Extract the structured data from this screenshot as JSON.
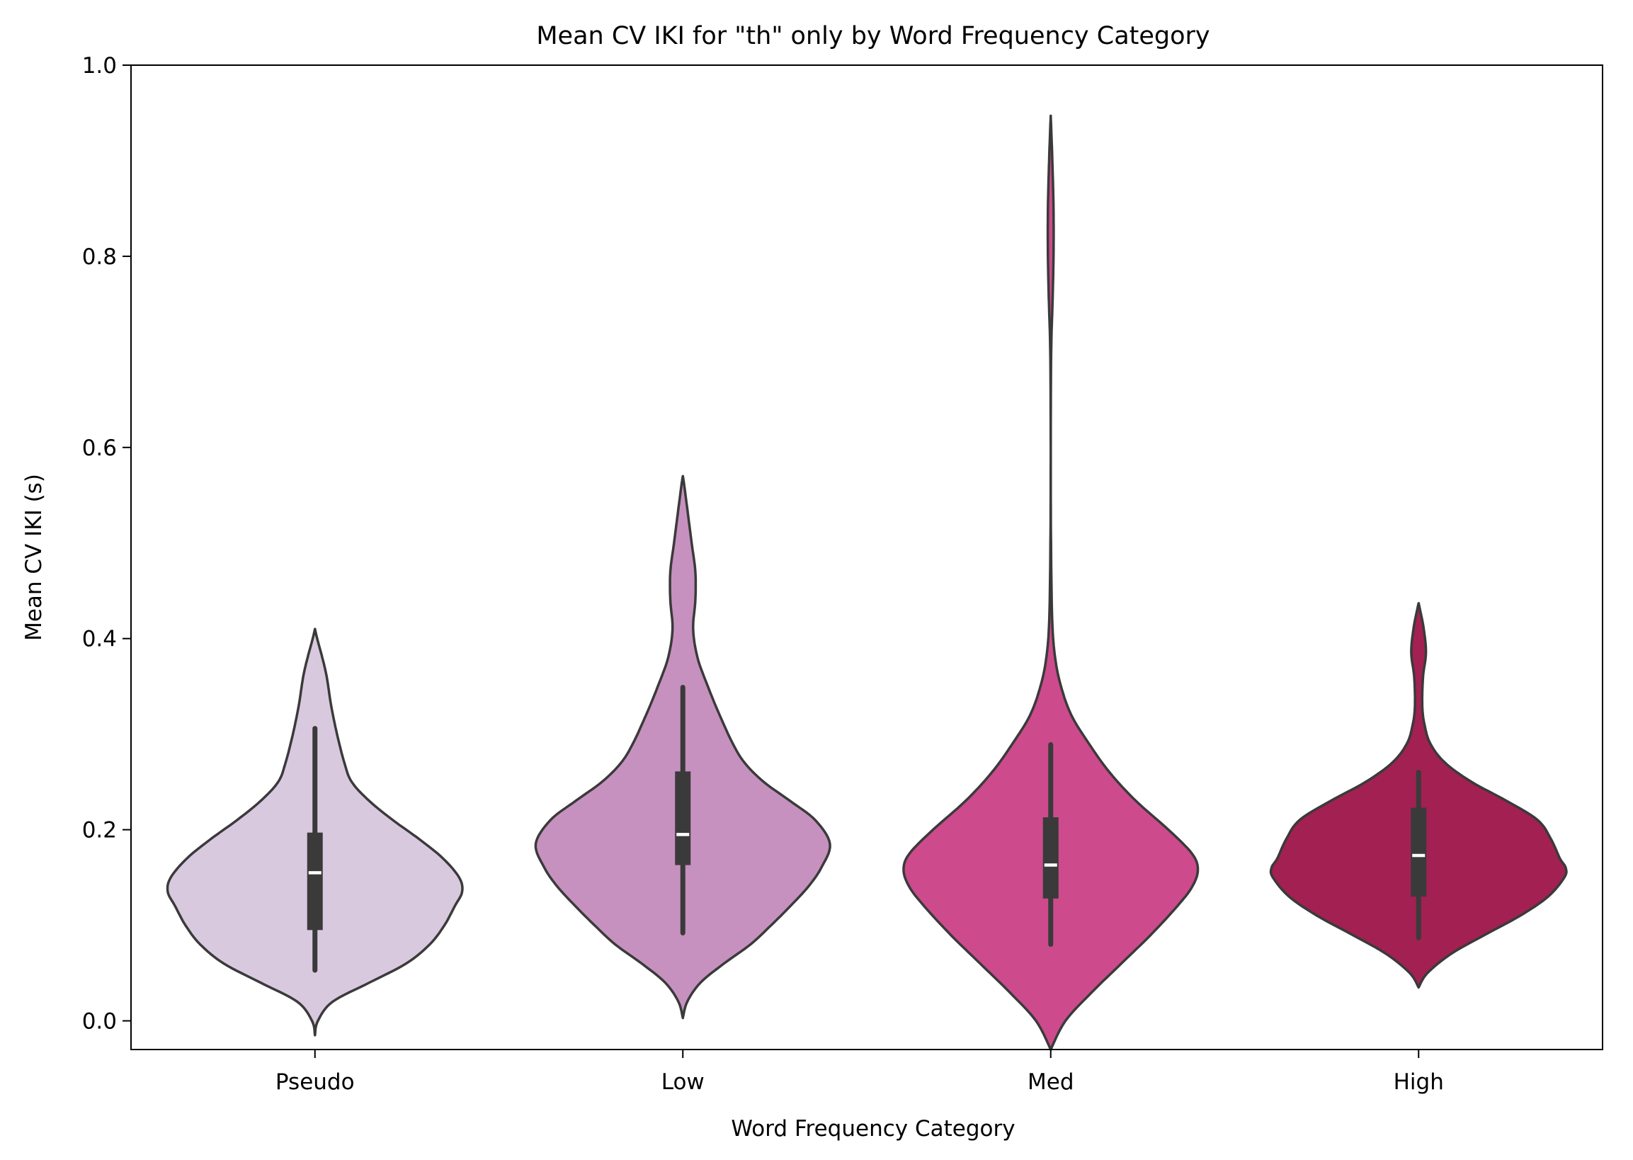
{
  "chart_data": {
    "type": "violin",
    "title": "Mean CV IKI for \"th\" only by Word Frequency Category",
    "xlabel": "Word Frequency Category",
    "ylabel": "Mean CV IKI (s)",
    "ylim": [
      -0.03,
      1.0
    ],
    "yticks": [
      "0.0",
      "0.2",
      "0.4",
      "0.6",
      "0.8",
      "1.0"
    ],
    "grid": false,
    "categories": [
      "Pseudo",
      "Low",
      "Med",
      "High"
    ],
    "series": [
      {
        "category": "Pseudo",
        "color": "#d9c9df",
        "min": 0.053,
        "q1": 0.095,
        "median": 0.155,
        "q3": 0.197,
        "max": 0.306,
        "kde_range": [
          -0.015,
          0.41
        ],
        "density": [
          [
            -0.015,
            0.0
          ],
          [
            0.0,
            0.02
          ],
          [
            0.02,
            0.12
          ],
          [
            0.04,
            0.37
          ],
          [
            0.06,
            0.62
          ],
          [
            0.08,
            0.78
          ],
          [
            0.1,
            0.88
          ],
          [
            0.12,
            0.95
          ],
          [
            0.135,
            1.0
          ],
          [
            0.15,
            0.98
          ],
          [
            0.17,
            0.87
          ],
          [
            0.19,
            0.71
          ],
          [
            0.21,
            0.53
          ],
          [
            0.23,
            0.37
          ],
          [
            0.25,
            0.25
          ],
          [
            0.27,
            0.2
          ],
          [
            0.3,
            0.15
          ],
          [
            0.33,
            0.11
          ],
          [
            0.36,
            0.08
          ],
          [
            0.38,
            0.05
          ],
          [
            0.4,
            0.015
          ],
          [
            0.41,
            0.0
          ]
        ]
      },
      {
        "category": "Low",
        "color": "#c691bf",
        "min": 0.092,
        "q1": 0.163,
        "median": 0.195,
        "q3": 0.261,
        "max": 0.349,
        "kde_range": [
          0.003,
          0.57
        ],
        "density": [
          [
            0.003,
            0.0
          ],
          [
            0.02,
            0.03
          ],
          [
            0.04,
            0.12
          ],
          [
            0.06,
            0.28
          ],
          [
            0.08,
            0.46
          ],
          [
            0.1,
            0.6
          ],
          [
            0.12,
            0.73
          ],
          [
            0.14,
            0.85
          ],
          [
            0.16,
            0.94
          ],
          [
            0.185,
            1.0
          ],
          [
            0.21,
            0.9
          ],
          [
            0.23,
            0.73
          ],
          [
            0.25,
            0.55
          ],
          [
            0.27,
            0.42
          ],
          [
            0.29,
            0.34
          ],
          [
            0.32,
            0.25
          ],
          [
            0.35,
            0.17
          ],
          [
            0.38,
            0.1
          ],
          [
            0.41,
            0.07
          ],
          [
            0.44,
            0.085
          ],
          [
            0.47,
            0.085
          ],
          [
            0.5,
            0.06
          ],
          [
            0.53,
            0.035
          ],
          [
            0.56,
            0.01
          ],
          [
            0.57,
            0.0
          ]
        ]
      },
      {
        "category": "Med",
        "color": "#cd4b8c",
        "min": 0.08,
        "q1": 0.128,
        "median": 0.163,
        "q3": 0.213,
        "max": 0.289,
        "kde_range": [
          -0.03,
          0.947
        ],
        "density": [
          [
            -0.03,
            0.0
          ],
          [
            0.0,
            0.1
          ],
          [
            0.03,
            0.28
          ],
          [
            0.06,
            0.48
          ],
          [
            0.09,
            0.68
          ],
          [
            0.12,
            0.86
          ],
          [
            0.14,
            0.96
          ],
          [
            0.158,
            1.0
          ],
          [
            0.175,
            0.96
          ],
          [
            0.2,
            0.8
          ],
          [
            0.23,
            0.58
          ],
          [
            0.26,
            0.4
          ],
          [
            0.29,
            0.26
          ],
          [
            0.32,
            0.14
          ],
          [
            0.35,
            0.07
          ],
          [
            0.38,
            0.03
          ],
          [
            0.42,
            0.01
          ],
          [
            0.5,
            0.002
          ],
          [
            0.6,
            0.0
          ],
          [
            0.7,
            0.003
          ],
          [
            0.75,
            0.012
          ],
          [
            0.8,
            0.019
          ],
          [
            0.85,
            0.019
          ],
          [
            0.9,
            0.011
          ],
          [
            0.947,
            0.0
          ]
        ]
      },
      {
        "category": "High",
        "color": "#a32052",
        "min": 0.087,
        "q1": 0.13,
        "median": 0.173,
        "q3": 0.223,
        "max": 0.26,
        "kde_range": [
          0.035,
          0.437
        ],
        "density": [
          [
            0.035,
            0.0
          ],
          [
            0.05,
            0.06
          ],
          [
            0.07,
            0.22
          ],
          [
            0.09,
            0.45
          ],
          [
            0.11,
            0.69
          ],
          [
            0.13,
            0.88
          ],
          [
            0.15,
            0.99
          ],
          [
            0.16,
            1.0
          ],
          [
            0.17,
            0.96
          ],
          [
            0.19,
            0.9
          ],
          [
            0.21,
            0.81
          ],
          [
            0.23,
            0.6
          ],
          [
            0.25,
            0.36
          ],
          [
            0.27,
            0.18
          ],
          [
            0.29,
            0.08
          ],
          [
            0.31,
            0.04
          ],
          [
            0.33,
            0.025
          ],
          [
            0.36,
            0.03
          ],
          [
            0.385,
            0.05
          ],
          [
            0.41,
            0.035
          ],
          [
            0.43,
            0.01
          ],
          [
            0.437,
            0.0
          ]
        ]
      }
    ]
  }
}
